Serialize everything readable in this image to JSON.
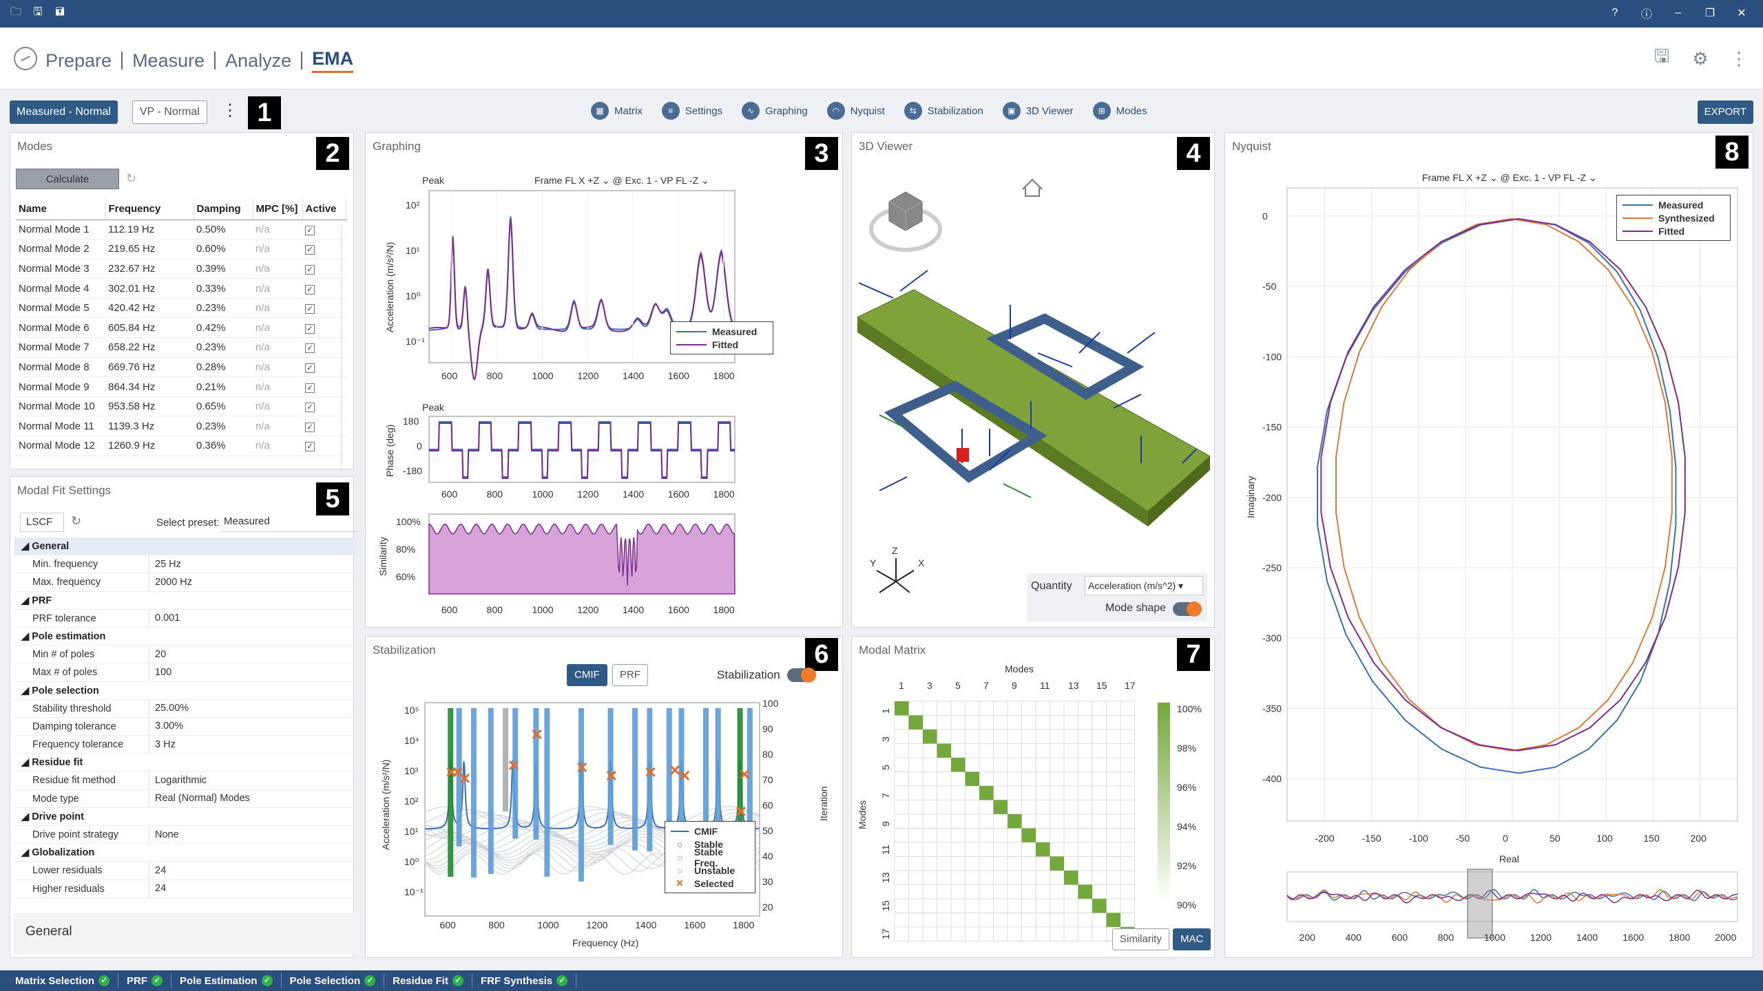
{
  "titlebar": {
    "left_icons": [
      "open-folder-icon",
      "save-icon",
      "save-as-icon"
    ],
    "right_icons": [
      "help-icon",
      "info-icon",
      "minimize-icon",
      "restore-icon",
      "close-icon"
    ]
  },
  "nav": {
    "tabs": [
      "Prepare",
      "Measure",
      "Analyze",
      "EMA"
    ],
    "active": "EMA"
  },
  "toolbar": {
    "measured_btn": "Measured - Normal",
    "vp_btn": "VP - Normal",
    "items": [
      "Matrix",
      "Settings",
      "Graphing",
      "Nyquist",
      "Stabilization",
      "3D Viewer",
      "Modes"
    ],
    "export": "EXPORT"
  },
  "badges": [
    "1",
    "2",
    "3",
    "4",
    "5",
    "6",
    "7",
    "8"
  ],
  "modes": {
    "title": "Modes",
    "calculate": "Calculate",
    "headers": [
      "Name",
      "Frequency",
      "Damping",
      "MPC [%]",
      "Active"
    ],
    "rows": [
      [
        "Normal Mode 1",
        "112.19 Hz",
        "0.50%",
        "n/a"
      ],
      [
        "Normal Mode 2",
        "219.65 Hz",
        "0.60%",
        "n/a"
      ],
      [
        "Normal Mode 3",
        "232.67 Hz",
        "0.39%",
        "n/a"
      ],
      [
        "Normal Mode 4",
        "302.01 Hz",
        "0.33%",
        "n/a"
      ],
      [
        "Normal Mode 5",
        "420.42 Hz",
        "0.23%",
        "n/a"
      ],
      [
        "Normal Mode 6",
        "605.84 Hz",
        "0.42%",
        "n/a"
      ],
      [
        "Normal Mode 7",
        "658.22 Hz",
        "0.23%",
        "n/a"
      ],
      [
        "Normal Mode 8",
        "669.76 Hz",
        "0.28%",
        "n/a"
      ],
      [
        "Normal Mode 9",
        "864.34 Hz",
        "0.21%",
        "n/a"
      ],
      [
        "Normal Mode 10",
        "953.58 Hz",
        "0.65%",
        "n/a"
      ],
      [
        "Normal Mode 11",
        "1139.3 Hz",
        "0.23%",
        "n/a"
      ],
      [
        "Normal Mode 12",
        "1260.9 Hz",
        "0.36%",
        "n/a"
      ]
    ]
  },
  "modal_fit": {
    "title": "Modal Fit Settings",
    "method": "LSCF",
    "preset_label": "Select preset:",
    "preset": "Measured",
    "rows": [
      {
        "g": "General"
      },
      {
        "k": "Min. frequency",
        "v": "25 Hz"
      },
      {
        "k": "Max. frequency",
        "v": "2000 Hz"
      },
      {
        "g": "PRF"
      },
      {
        "k": "PRF tolerance",
        "v": "0.001"
      },
      {
        "g": "Pole estimation"
      },
      {
        "k": "Min # of poles",
        "v": "20"
      },
      {
        "k": "Max # of poles",
        "v": "100"
      },
      {
        "g": "Pole selection"
      },
      {
        "k": "Stability threshold",
        "v": "25.00%"
      },
      {
        "k": "Damping tolerance",
        "v": "3.00%"
      },
      {
        "k": "Frequency tolerance",
        "v": "3 Hz"
      },
      {
        "g": "Residue fit"
      },
      {
        "k": "Residue fit method",
        "v": "Logarithmic"
      },
      {
        "k": "Mode type",
        "v": "Real (Normal) Modes"
      },
      {
        "g": "Drive point"
      },
      {
        "k": "Drive point strategy",
        "v": "None"
      },
      {
        "g": "Globalization"
      },
      {
        "k": "Lower residuals",
        "v": "24"
      },
      {
        "k": "Higher residuals",
        "v": "24"
      }
    ],
    "footer": "General"
  },
  "graphing": {
    "title": "Graphing",
    "peak1": "Peak",
    "peak2": "Peak",
    "selector": "Frame FL X +Z ⌄  @ Exc. 1 - VP FL -Z ⌄",
    "ylabel1": "Acceleration (m/s²/N)",
    "ylabel2": "Phase (deg)",
    "ylabel3": "Similarity",
    "yticks1": [
      "10²",
      "10¹",
      "10⁰",
      "10⁻¹"
    ],
    "yticks2": [
      "180",
      "0",
      "-180"
    ],
    "yticks3": [
      "100%",
      "80%",
      "60%"
    ],
    "xticks": [
      "600",
      "800",
      "1000",
      "1200",
      "1400",
      "1600",
      "1800"
    ],
    "legend": [
      "Measured",
      "Fitted"
    ]
  },
  "viewer": {
    "title": "3D Viewer",
    "quantity_label": "Quantity",
    "quantity": "Acceleration (m/s^2)",
    "mode_shape": "Mode shape",
    "axes": [
      "Y",
      "Z",
      "X"
    ]
  },
  "nyquist": {
    "title": "Nyquist",
    "selector": "Frame FL X +Z ⌄  @ Exc. 1 - VP FL -Z ⌄",
    "xlabel": "Real",
    "ylabel": "Imaginary",
    "legend": [
      "Measured",
      "Synthesized",
      "Fitted"
    ],
    "yticks": [
      "0",
      "-50",
      "-100",
      "-150",
      "-200",
      "-250",
      "-300",
      "-350",
      "-400"
    ],
    "xticks": [
      "-200",
      "-150",
      "-100",
      "-50",
      "0",
      "50",
      "100",
      "150",
      "200"
    ],
    "overview_ticks": [
      "200",
      "400",
      "600",
      "800",
      "1000",
      "1200",
      "1400",
      "1600",
      "1800",
      "2000"
    ]
  },
  "stabilization": {
    "title": "Stabilization",
    "cmif": "CMIF",
    "prf": "PRF",
    "toggle_label": "Stabilization",
    "xlabel": "Frequency (Hz)",
    "ylabel": "Acceleration (m/s²/N)",
    "y2label": "Iteration",
    "yticks": [
      "10⁵",
      "10⁴",
      "10³",
      "10²",
      "10¹",
      "10⁰",
      "10⁻¹"
    ],
    "y2ticks": [
      "100",
      "90",
      "80",
      "70",
      "60",
      "50",
      "40",
      "30",
      "20"
    ],
    "xticks": [
      "600",
      "800",
      "1000",
      "1200",
      "1400",
      "1600",
      "1800"
    ],
    "legend": [
      "CMIF",
      "Stable",
      "Stable Freq.",
      "Unstable",
      "Selected"
    ]
  },
  "matrix": {
    "title": "Modal Matrix",
    "xlabel": "Modes",
    "ylabel": "Modes",
    "xticks": [
      "1",
      "3",
      "5",
      "7",
      "9",
      "11",
      "13",
      "15",
      "17"
    ],
    "yticks": [
      "1",
      "3",
      "5",
      "7",
      "9",
      "11",
      "13",
      "15",
      "17"
    ],
    "scale": [
      "100%",
      "98%",
      "96%",
      "94%",
      "92%",
      "90%"
    ],
    "btn_similarity": "Similarity",
    "btn_mac": "MAC"
  },
  "status": [
    "Matrix Selection",
    "PRF",
    "Pole Estimation",
    "Pole Selection",
    "Residue Fit",
    "FRF Synthesis"
  ],
  "colors": {
    "measured": "#3a6fb0",
    "fitted": "#7b2e8e",
    "synth": "#e07a3c",
    "stable": "#1e8a2e",
    "unstable": "#9aa2ad",
    "selected": "#e46b2a",
    "accent": "#2a4e7e"
  }
}
